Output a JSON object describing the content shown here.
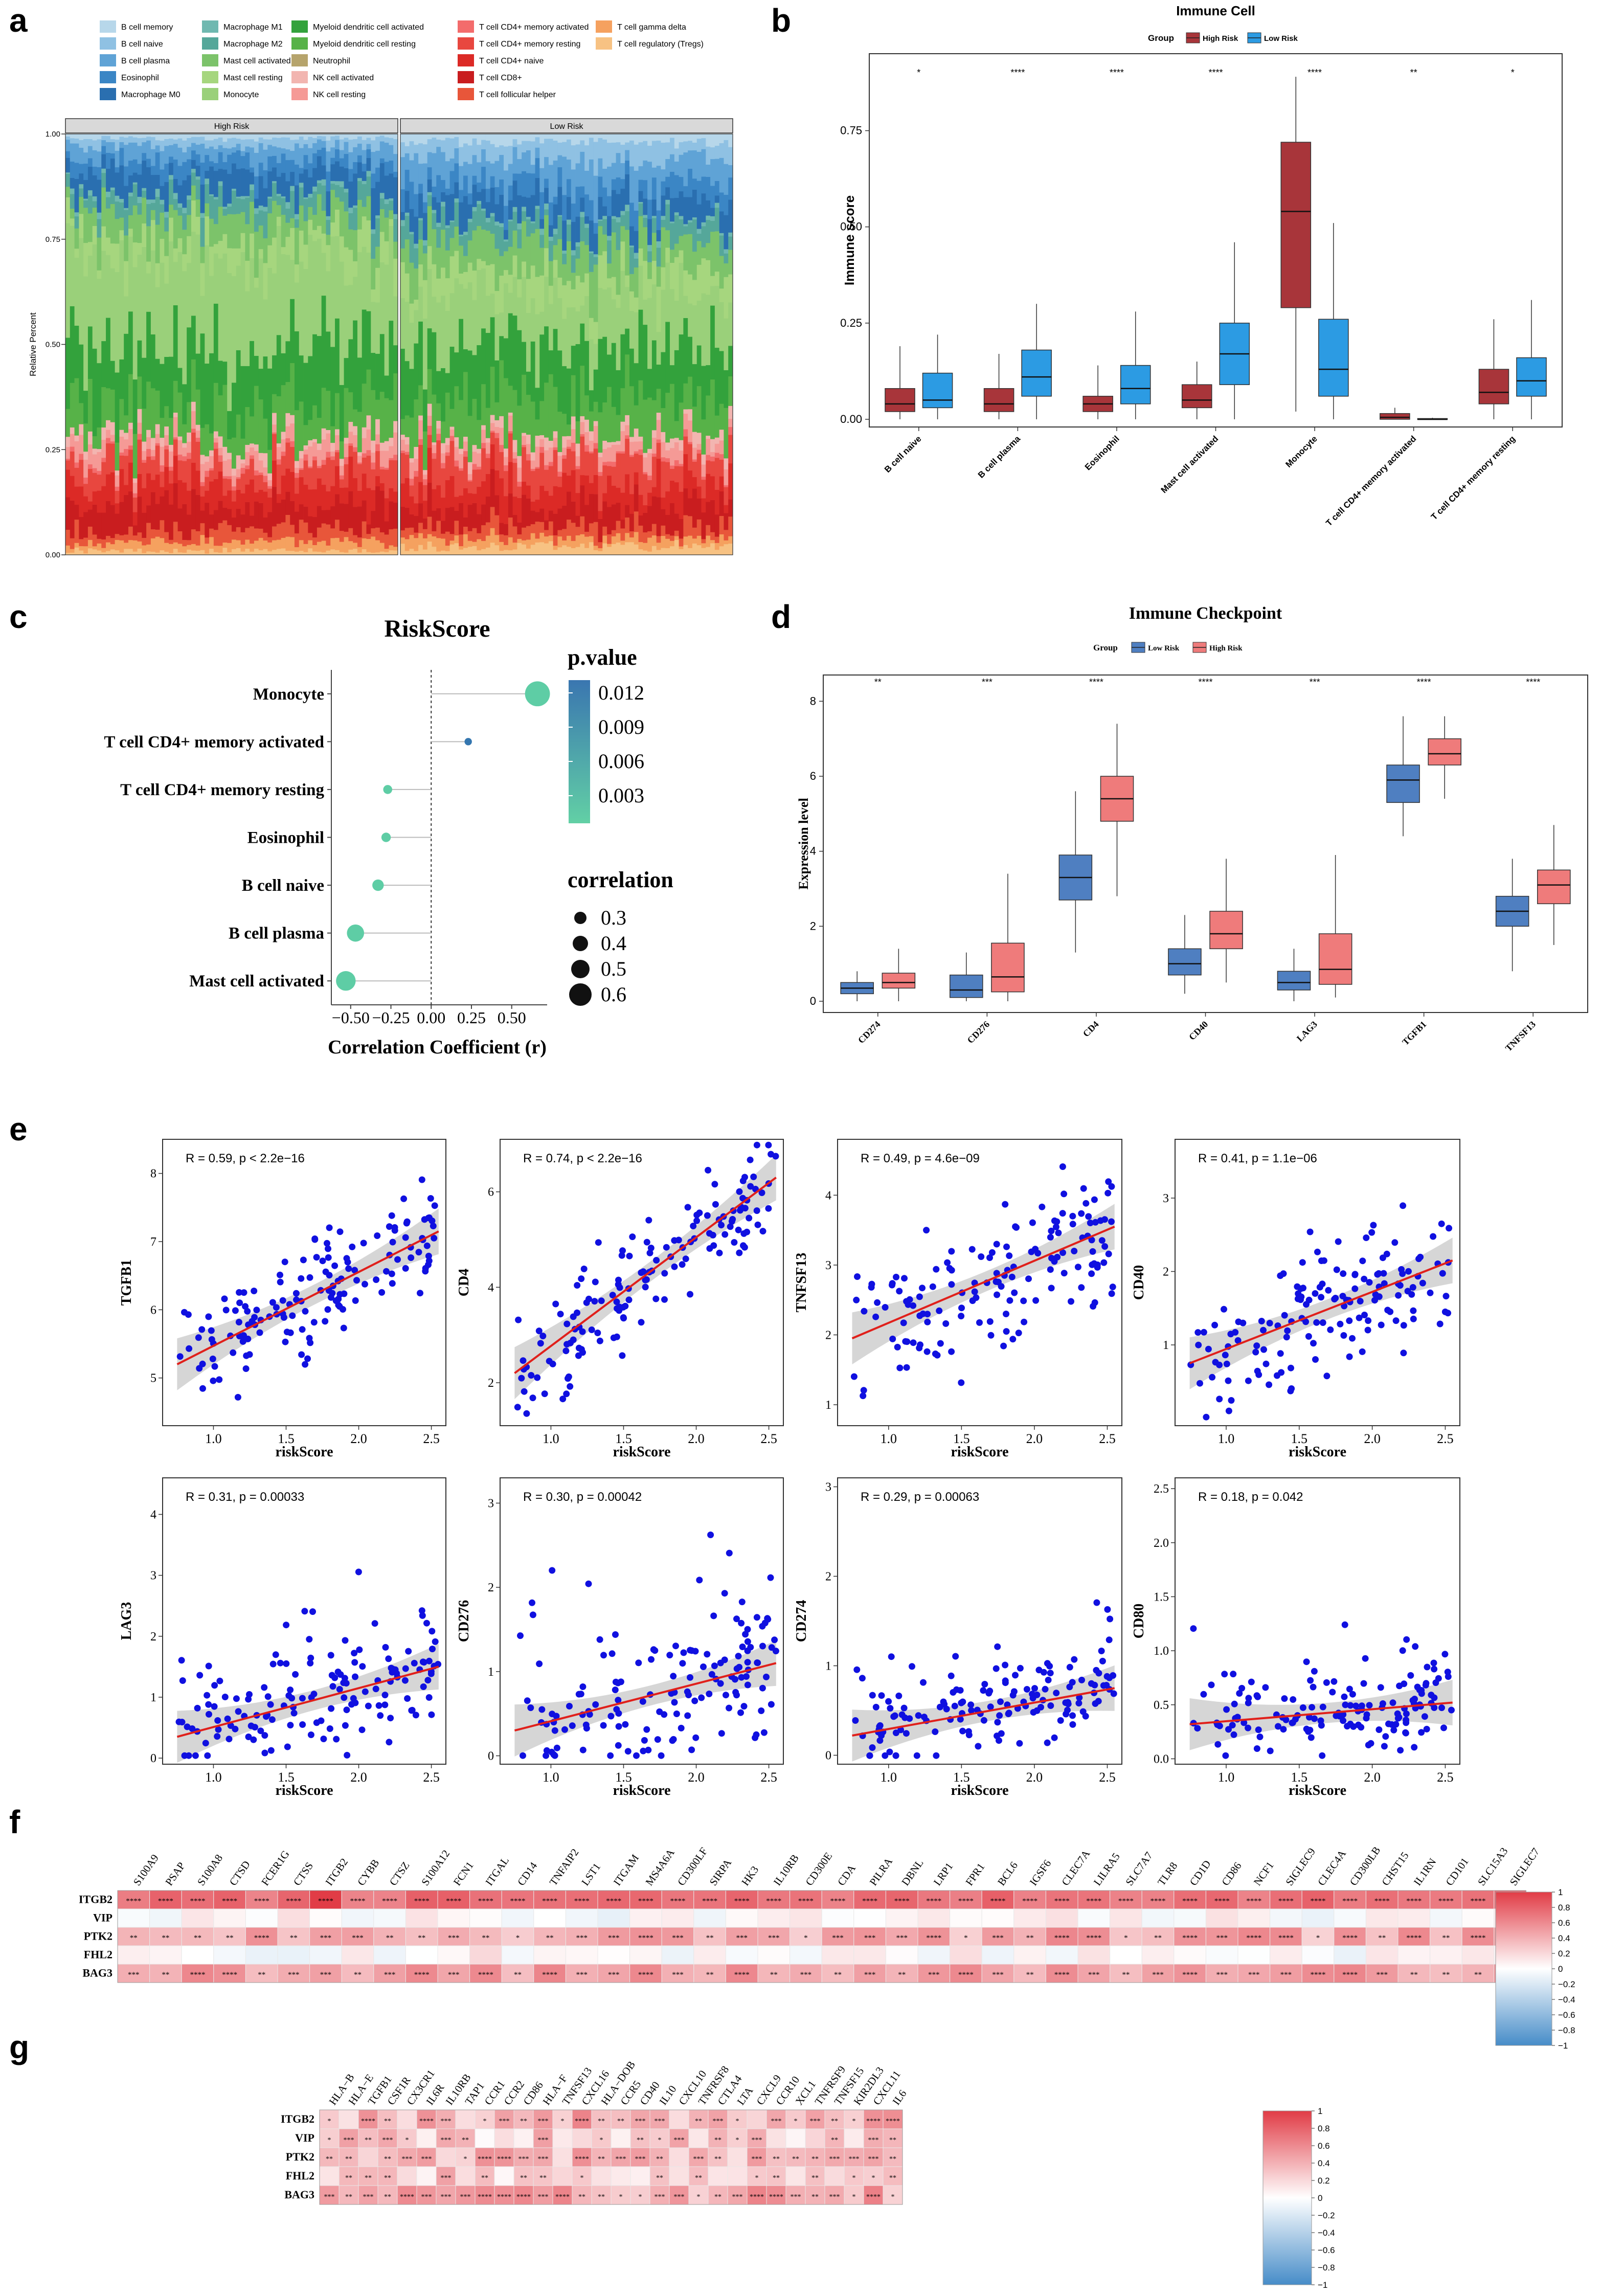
{
  "panel_letters": [
    "a",
    "b",
    "c",
    "d",
    "e",
    "f",
    "g"
  ],
  "chart_data": [
    {
      "id": "a",
      "type": "stacked_bar",
      "groups": [
        "High Risk",
        "Low Risk"
      ],
      "ylabel": "Relative Percent",
      "ytick_labels": [
        "0.00",
        "0.25",
        "0.50",
        "0.75",
        "1.00"
      ],
      "legend": [
        {
          "label": "B cell memory",
          "color": "#b7d7ea"
        },
        {
          "label": "B cell naive",
          "color": "#8fc1e3"
        },
        {
          "label": "B cell plasma",
          "color": "#5fa3d6"
        },
        {
          "label": "Eosinophil",
          "color": "#3b86c5"
        },
        {
          "label": "Macrophage M0",
          "color": "#2a6fb0"
        },
        {
          "label": "Macrophage M1",
          "color": "#6fb8b0"
        },
        {
          "label": "Macrophage M2",
          "color": "#55a79a"
        },
        {
          "label": "Mast cell activated",
          "color": "#7cc36a"
        },
        {
          "label": "Mast cell resting",
          "color": "#a6d67e"
        },
        {
          "label": "Monocyte",
          "color": "#9ad07a"
        },
        {
          "label": "Myeloid dendritic cell activated",
          "color": "#33a23c"
        },
        {
          "label": "Myeloid dendritic cell resting",
          "color": "#57b248"
        },
        {
          "label": "Neutrophil",
          "color": "#b6a46c"
        },
        {
          "label": "NK cell activated",
          "color": "#f2b5b0"
        },
        {
          "label": "NK cell resting",
          "color": "#f59a96"
        },
        {
          "label": "T cell CD4+ memory activated",
          "color": "#f36c6c"
        },
        {
          "label": "T cell CD4+ memory resting",
          "color": "#e8473f"
        },
        {
          "label": "T cell CD4+ naive",
          "color": "#dc2a26"
        },
        {
          "label": "T cell CD8+",
          "color": "#c91d1f"
        },
        {
          "label": "T cell follicular helper",
          "color": "#e8563a"
        },
        {
          "label": "T cell gamma delta",
          "color": "#f5a15f"
        },
        {
          "label": "T cell regulatory (Tregs)",
          "color": "#f7c283"
        }
      ],
      "mean_composition": {
        "High Risk": [
          0.01,
          0.02,
          0.03,
          0.03,
          0.05,
          0.01,
          0.04,
          0.06,
          0.05,
          0.2,
          0.14,
          0.08,
          0.0,
          0.02,
          0.03,
          0.01,
          0.05,
          0.05,
          0.06,
          0.03,
          0.02,
          0.01
        ],
        "Low Risk": [
          0.02,
          0.04,
          0.06,
          0.04,
          0.05,
          0.01,
          0.04,
          0.07,
          0.06,
          0.12,
          0.12,
          0.09,
          0.0,
          0.02,
          0.03,
          0.01,
          0.06,
          0.05,
          0.05,
          0.03,
          0.02,
          0.02
        ]
      }
    },
    {
      "id": "b",
      "type": "boxplot",
      "title": "Immune Cell",
      "legend_title": "Group",
      "series": [
        {
          "name": "High Risk",
          "color": "#a8353a"
        },
        {
          "name": "Low Risk",
          "color": "#2c9be3"
        }
      ],
      "ylabel": "Immune score",
      "ylim": [
        -0.02,
        0.95
      ],
      "ytick_labels": [
        "0.00",
        "0.25",
        "0.50",
        "0.75"
      ],
      "ytick_values": [
        0,
        0.25,
        0.5,
        0.75
      ],
      "categories": [
        "B cell naive",
        "B cell plasma",
        "Eosinophil",
        "Mast cell activated",
        "Monocyte",
        "T cell CD4+ memory activated",
        "T cell CD4+ memory resting"
      ],
      "significance": [
        "*",
        "****",
        "****",
        "****",
        "****",
        "**",
        "*"
      ],
      "boxes": {
        "High Risk": [
          [
            0.0,
            0.02,
            0.04,
            0.08,
            0.19
          ],
          [
            0.0,
            0.02,
            0.04,
            0.08,
            0.17
          ],
          [
            0.0,
            0.02,
            0.04,
            0.06,
            0.14
          ],
          [
            0.0,
            0.03,
            0.05,
            0.09,
            0.15
          ],
          [
            0.02,
            0.29,
            0.54,
            0.72,
            0.89
          ],
          [
            0.0,
            0.0,
            0.005,
            0.015,
            0.03
          ],
          [
            0.0,
            0.04,
            0.07,
            0.13,
            0.26
          ]
        ],
        "Low Risk": [
          [
            0.0,
            0.03,
            0.05,
            0.12,
            0.22
          ],
          [
            0.0,
            0.06,
            0.11,
            0.18,
            0.3
          ],
          [
            0.0,
            0.04,
            0.08,
            0.14,
            0.28
          ],
          [
            0.0,
            0.09,
            0.17,
            0.25,
            0.46
          ],
          [
            0.0,
            0.06,
            0.13,
            0.26,
            0.51
          ],
          [
            0.0,
            0.0,
            0.0,
            0.002,
            0.004
          ],
          [
            0.0,
            0.06,
            0.1,
            0.16,
            0.31
          ]
        ]
      }
    },
    {
      "id": "c",
      "type": "lollipop",
      "title": "RiskScore",
      "xlabel": "Correlation Coefficient (r)",
      "xlim": [
        -0.62,
        0.72
      ],
      "xtick_labels": [
        "−0.50",
        "−0.25",
        "0.00",
        "0.25",
        "0.50"
      ],
      "xtick_values": [
        -0.5,
        -0.25,
        0,
        0.25,
        0.5
      ],
      "categories": [
        "Monocyte",
        "T cell CD4+ memory activated",
        "T cell CD4+ memory resting",
        "Eosinophil",
        "B cell naive",
        "B cell plasma",
        "Mast cell activated"
      ],
      "correlation": [
        0.66,
        0.23,
        -0.27,
        -0.28,
        -0.33,
        -0.47,
        -0.53
      ],
      "p_value": [
        0.0,
        0.013,
        0.0,
        0.0,
        0.0,
        0.0,
        0.0
      ],
      "colorbar_title": "p.value",
      "colorbar_labels": [
        "0.012",
        "0.009",
        "0.006",
        "0.003"
      ],
      "size_legend_title": "correlation",
      "size_legend_labels": [
        "0.3",
        "0.4",
        "0.5",
        "0.6"
      ]
    },
    {
      "id": "d",
      "type": "boxplot",
      "title": "Immune Checkpoint",
      "legend_title": "Group",
      "series": [
        {
          "name": "Low Risk",
          "color": "#4f7fc1"
        },
        {
          "name": "High Risk",
          "color": "#ef7b7b"
        }
      ],
      "ylabel": "Expression level",
      "ylim": [
        -0.3,
        8.7
      ],
      "ytick_labels": [
        "0",
        "2",
        "4",
        "6",
        "8"
      ],
      "ytick_values": [
        0,
        2,
        4,
        6,
        8
      ],
      "categories": [
        "CD274",
        "CD276",
        "CD4",
        "CD40",
        "LAG3",
        "TGFB1",
        "TNFSF13"
      ],
      "significance": [
        "**",
        "***",
        "****",
        "****",
        "***",
        "****",
        "****"
      ],
      "boxes": {
        "Low Risk": [
          [
            0.0,
            0.2,
            0.35,
            0.5,
            0.8
          ],
          [
            0.0,
            0.1,
            0.3,
            0.7,
            1.3
          ],
          [
            1.3,
            2.7,
            3.3,
            3.9,
            5.6
          ],
          [
            0.2,
            0.7,
            1.0,
            1.4,
            2.3
          ],
          [
            0.0,
            0.3,
            0.5,
            0.8,
            1.4
          ],
          [
            4.4,
            5.3,
            5.9,
            6.3,
            7.6
          ],
          [
            0.8,
            2.0,
            2.4,
            2.8,
            3.8
          ]
        ],
        "High Risk": [
          [
            0.0,
            0.35,
            0.5,
            0.75,
            1.4
          ],
          [
            0.0,
            0.25,
            0.65,
            1.55,
            3.4
          ],
          [
            2.8,
            4.8,
            5.4,
            6.0,
            7.4
          ],
          [
            0.5,
            1.4,
            1.8,
            2.4,
            3.8
          ],
          [
            0.1,
            0.45,
            0.85,
            1.8,
            3.9
          ],
          [
            5.4,
            6.3,
            6.6,
            7.0,
            7.6
          ],
          [
            1.5,
            2.6,
            3.1,
            3.5,
            4.7
          ]
        ]
      }
    },
    {
      "id": "e",
      "type": "scatter_grid",
      "xlabel": "riskScore",
      "xtick_labels": [
        "1.0",
        "1.5",
        "2.0",
        "2.5"
      ],
      "panels": [
        {
          "gene": "TGFB1",
          "stat": "R = 0.59, p < 2.2e−16",
          "r": 0.59,
          "xlim": [
            0.65,
            2.6
          ],
          "ylim": [
            4.3,
            8.5
          ],
          "yticks": [
            5,
            6,
            7,
            8
          ],
          "fit": [
            5.2,
            7.15
          ],
          "sd": 0.55
        },
        {
          "gene": "CD4",
          "stat": "R = 0.74, p < 2.2e−16",
          "r": 0.74,
          "xlim": [
            0.65,
            2.6
          ],
          "ylim": [
            1.1,
            7.1
          ],
          "yticks": [
            2,
            4,
            6
          ],
          "fit": [
            2.2,
            6.3
          ],
          "sd": 0.85
        },
        {
          "gene": "TNFSF13",
          "stat": "R = 0.49, p = 4.6e−09",
          "r": 0.49,
          "xlim": [
            0.65,
            2.6
          ],
          "ylim": [
            0.7,
            4.8
          ],
          "yticks": [
            1,
            2,
            3,
            4
          ],
          "fit": [
            1.95,
            3.55
          ],
          "sd": 0.7
        },
        {
          "gene": "CD40",
          "stat": "R = 0.41, p = 1.1e−06",
          "r": 0.41,
          "xlim": [
            0.65,
            2.6
          ],
          "ylim": [
            -0.1,
            3.8
          ],
          "yticks": [
            1,
            2,
            3
          ],
          "fit": [
            0.75,
            2.15
          ],
          "sd": 0.65
        },
        {
          "gene": "LAG3",
          "stat": "R = 0.31, p = 0.00033",
          "r": 0.31,
          "xlim": [
            0.65,
            2.6
          ],
          "ylim": [
            -0.1,
            4.6
          ],
          "yticks": [
            0,
            1,
            2,
            3,
            4
          ],
          "fit": [
            0.35,
            1.5
          ],
          "sd": 0.7
        },
        {
          "gene": "CD276",
          "stat": "R = 0.30, p = 0.00042",
          "r": 0.3,
          "xlim": [
            0.65,
            2.6
          ],
          "ylim": [
            -0.1,
            3.3
          ],
          "yticks": [
            0,
            1,
            2,
            3
          ],
          "fit": [
            0.3,
            1.1
          ],
          "sd": 0.6
        },
        {
          "gene": "CD274",
          "stat": "R = 0.29, p = 0.00063",
          "r": 0.29,
          "xlim": [
            0.65,
            2.6
          ],
          "ylim": [
            -0.1,
            3.1
          ],
          "yticks": [
            0,
            1,
            2,
            3
          ],
          "fit": [
            0.22,
            0.75
          ],
          "sd": 0.35
        },
        {
          "gene": "CD80",
          "stat": "R = 0.18, p = 0.042",
          "r": 0.18,
          "xlim": [
            0.65,
            2.6
          ],
          "ylim": [
            -0.05,
            2.6
          ],
          "yticks": [
            0.0,
            0.5,
            1.0,
            1.5,
            2.0,
            2.5
          ],
          "fit": [
            0.32,
            0.52
          ],
          "sd": 0.3
        }
      ]
    },
    {
      "id": "f",
      "type": "heatmap",
      "rows": [
        "ITGB2",
        "VIP",
        "PTK2",
        "FHL2",
        "BAG3"
      ],
      "columns": [
        "S100A9",
        "PSAP",
        "S100A8",
        "CTSD",
        "FCER1G",
        "CTSS",
        "ITGB2",
        "CYBB",
        "CTSZ",
        "S100A12",
        "FCN1",
        "ITGAL",
        "CD14",
        "TNFAIP2",
        "LST1",
        "ITGAM",
        "MS4A6A",
        "CD300LF",
        "SIRPA",
        "HK3",
        "IL10RB",
        "CD300E",
        "CDA",
        "PILRA",
        "DBNL",
        "LRP1",
        "FPR1",
        "BCL6",
        "IGSF6",
        "CLEC7A",
        "LILRA5",
        "SLC7A7",
        "TLR8",
        "CD1D",
        "CD86",
        "NCF1",
        "SIGLEC9",
        "CLEC4A",
        "CD300LB",
        "CHST15",
        "IL1RN",
        "CD101",
        "SLC15A3",
        "SIGLEC7"
      ],
      "colorbar_labels": [
        "1",
        "0.8",
        "0.6",
        "0.4",
        "0.2",
        "0",
        "−0.2",
        "−0.4",
        "−0.6",
        "−0.8",
        "−1"
      ]
    },
    {
      "id": "g",
      "type": "heatmap",
      "rows": [
        "ITGB2",
        "VIP",
        "PTK2",
        "FHL2",
        "BAG3"
      ],
      "columns": [
        "HLA−B",
        "HLA−E",
        "TGFB1",
        "CSF1R",
        "CX3CR1",
        "IL6R",
        "IL10RB",
        "TAP1",
        "CCR1",
        "CCR2",
        "CD86",
        "HLA−F",
        "TNFSF13",
        "CXCL16",
        "HLA−DOB",
        "CCR5",
        "CD40",
        "IL10",
        "CXCL10",
        "TNFRSF8",
        "CTLA4",
        "LTA",
        "CXCL9",
        "CCR10",
        "XCL1",
        "TNFRSF9",
        "TNFSF15",
        "KIR2DL3",
        "CXCL11",
        "IL6"
      ],
      "colorbar_labels": [
        "1",
        "0.8",
        "0.6",
        "0.4",
        "0.2",
        "0",
        "−0.2",
        "−0.4",
        "−0.6",
        "−0.8",
        "−1"
      ]
    }
  ]
}
